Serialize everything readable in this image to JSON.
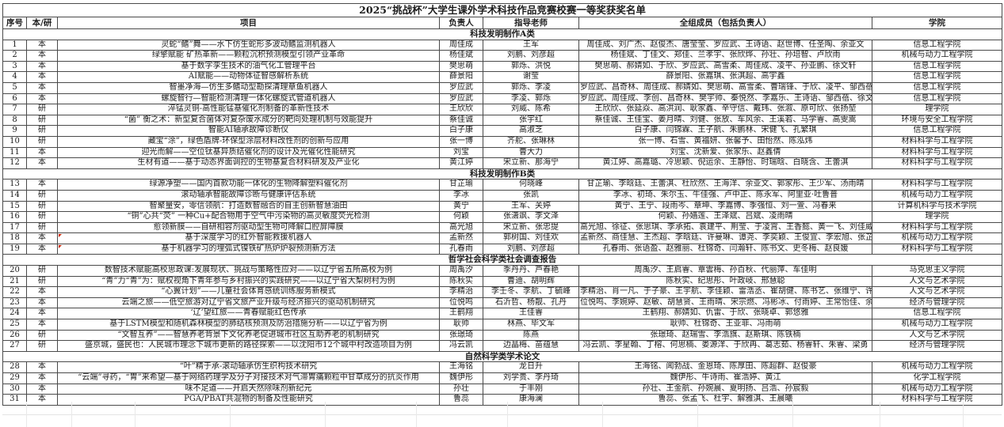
{
  "title": "2025“挑战杯”大学生课外学术科技作品竞赛校赛一等奖获奖名单",
  "columns": [
    "序号",
    "本/研",
    "项目",
    "负责人",
    "指导老师",
    "全组成员（包括负责人）",
    "学院"
  ],
  "sections": [
    {
      "label": "科技发明制作A类",
      "rows": [
        {
          "no": "1",
          "type": "本",
          "project": "灵蛇“鳍”舞——水下仿生蛇形多波动鳍监测机器人",
          "leader": "周佳成",
          "advisors": "王军",
          "members": "周佳成、刘广杰、赵俊杰、唐莹莹、罗应武、王诗语、赵世博、任圣陶、余亚文",
          "college": "信息工程学院"
        },
        {
          "no": "2",
          "type": "本",
          "project": "绿擎赋能 矿热革新——颗粒沉积预测模型引领产业革命",
          "leader": "杨佳斌",
          "advisors": "刘鹏、刘彦超",
          "members": "杨佳斌、丁佳文、郑佳、兰孝宇、张欣烨、孙壮、孙培智、卢欣雨",
          "college": "机械与动力工程学院"
        },
        {
          "no": "3",
          "type": "本",
          "project": "基于数字孪生技术的油气化工管理平台",
          "leader": "樊思萌",
          "advisors": "郭烁、洪悦",
          "members": "樊思萌、郝婧如、于欣、罗应武、高雪柔、周佳成、凌平、孙亚鹏、徐文轩",
          "college": "信息工程学院"
        },
        {
          "no": "4",
          "type": "本",
          "project": "AI赋能——动物体征智感解析系统",
          "leader": "薛景阳",
          "advisors": "谢莹",
          "members": "薛景阳、张嘉琪、张淇超、高宇鑫",
          "college": "信息工程学院"
        },
        {
          "no": "5",
          "type": "本",
          "project": "智墨净海—仿生多鳍动型勘探清理章鱼机器人",
          "leader": "罗应武",
          "advisors": "郭烁、李凌",
          "members": "罗应武、昌奇林、周佳成、郝婧如、樊思萌、高雪柔、曹瑞锋、于欣、凌平、邹西蓓",
          "college": "信息工程学院"
        },
        {
          "no": "6",
          "type": "本",
          "project": "螺旋智行—智能检测清理一体化螺旋式管道机器人",
          "leader": "罗应武",
          "advisors": "李凌、郭烁",
          "members": "罗应武、周佳成、李创、昌奇林、樊宇帅、秦悦然、李嘉乐、王诗语、邹西蓓、徐文轩",
          "college": "信息工程学院"
        },
        {
          "no": "7",
          "type": "研",
          "project": "淬锰灵铜-高性能锰基催化剂制备的革新性技术",
          "leader": "王欣欣",
          "advisors": "刘威、陈希",
          "members": "王欣欣、张延焱、高洪润、耿家鑫、辛守信、戴玮、张溆、原可欣、张扬堃",
          "college": "理学院"
        },
        {
          "no": "8",
          "type": "研",
          "project": "“菌” 衡之术：新型复合菌体对复杂废水成分的靶向处理机制与效能提升",
          "leader": "蔡佳诚",
          "advisors": "张宇红",
          "members": "蔡佳诚、王佳宝、姜月晴、刘健、张放、车风余、王溪若、马学睿、高雯嵩",
          "college": "环境与安全工程学院"
        },
        {
          "no": "9",
          "type": "研",
          "project": "智能AI轴承故障诊断仪",
          "leader": "白子康",
          "advisors": "高淑芝",
          "members": "白子康、闫锦霖、王子航、朱鹏林、宋健飞、孔繁琪",
          "college": "信息工程学院"
        },
        {
          "no": "10",
          "type": "研",
          "project": "藏宝“涂”，绿色盾牌-环保型涂层材料改性剂的创新与应用",
          "leader": "张一博",
          "advisors": "齐舵、张琳林",
          "members": "张一博、石雪、黄福妍、张馨予、田怡然、陈泓炜",
          "college": "材料科学与工程学院"
        },
        {
          "no": "11",
          "type": "本",
          "project": "迎光而解——空位钛基异质结催化剂的设计及光催化性能研究",
          "leader": "刘宝",
          "advisors": "曹大力",
          "members": "刘宝、沈新爱、张家乐、赵鑫倩",
          "college": "材料科学与工程学院"
        },
        {
          "no": "12",
          "type": "本",
          "project": "生材有道——基于动态界面调控的生物基复合材料研发及产业化",
          "leader": "黄江婷",
          "advisors": "宋立新、那海宁",
          "members": "黄江婷、高嘉璐、冷思颖、倪运余、王静怡、时瑞晗、白晓含、王蕾淇",
          "college": "材料科学与工程学院"
        }
      ]
    },
    {
      "label": "科技发明制作B类",
      "rows": [
        {
          "no": "13",
          "type": "本",
          "project": "绿源净塑——国内首款功能一体化的生物降解塑料催化剂",
          "leader": "甘芷瑜",
          "advisors": "何晓峰",
          "members": "甘芷瑜、李晗廷、王蕾淇、杜欣然、王海洋、余亚文、郭家彤、王少军、汤雨晴",
          "college": "材料科学与工程学院"
        },
        {
          "no": "14",
          "type": "研",
          "project": "滚动轴承智能故障诊断与健康评估系统",
          "leader": "李冰",
          "advisors": "张凯",
          "members": "李冰、初琦、朱尔玉、牛佳强、卢中正、陈永军、阿里亚·吐鲁普",
          "college": "机械与动力工程学院"
        },
        {
          "no": "15",
          "type": "研",
          "project": "智聚量安，零信领航：打造数智融合的自主创新智慧油田",
          "leader": "黄宁",
          "advisors": "王军、关婷",
          "members": "黄宁、王宁、段雨岑、章坤、李嘉博、季强恒、刘一萱、冯春来",
          "college": "计算机科学与技术学院"
        },
        {
          "no": "16",
          "type": "研",
          "project": "“铜”心共“荧” 一种Cu+配合物用于空气中污染物的高灵敏度荧光检测",
          "leader": "何颖",
          "advisors": "张潇飒、李文泽",
          "members": "何颖、孙嫱莲、王泽斌、吕斌、凌雨晴",
          "college": "理学院"
        },
        {
          "no": "17",
          "type": "研",
          "project": "愈领新膜——自研相容剂驱动型生物可降解口腔屏障膜",
          "leader": "高光旭",
          "advisors": "宋立新、张忠提",
          "members": "高光旭、徐征、张思琪、李承拓、袁建平、荆莹、于凌霄、王香懿、黄一飞、刘佳威",
          "college": "材料科学与工程学院"
        },
        {
          "no": "18",
          "type": "本",
          "project": "基于深度学习的红外智能救援机器人",
          "leader": "孟新然",
          "advisors": "郭树国、刘佳欢",
          "members": "孟新然、商佳慧、王杰超、李晗廷、许曼琳、谭尧、李奕颖、王俊宜、李宏旭、张芷铭",
          "college": "机械与动力工程学院",
          "flag": true
        },
        {
          "no": "19",
          "type": "本",
          "project": "基于机器学习的埋弧式镍铁矿热炉炉裂预测新方法",
          "leader": "孔春雨",
          "advisors": "刘鹏、刘彦超",
          "members": "孔春雨、张语盈、赵雅丽、杜锦奇、闫瀚轩、陈书文、史冬梅、赵良媛",
          "college": "材料科学与工程学院",
          "flag": true
        }
      ]
    },
    {
      "label": "哲学社会科学类社会调查报告",
      "rows": [
        {
          "no": "20",
          "type": "研",
          "project": "数智技术赋能高校思政课:发展现状、挑战与策略性应对——以辽宁省五所高校为例",
          "leader": "周禹汐",
          "advisors": "季丹丹、芦春艳",
          "members": "周禹汐、王启睿、覃雲梅、孙百秋、代丽萍、车佳明",
          "college": "马克思主义学院"
        },
        {
          "no": "21",
          "type": "研",
          "project": "“青”力“青”为：赋权视角下青年参与乡村振兴的实践研究——以辽宁省大梨树村为例",
          "leader": "陈秋实",
          "advisors": "曹迪、胡明辉",
          "members": "陈秋实、纪思彤、叶政岐、邢慧聪",
          "college": "人文与艺术学院"
        },
        {
          "no": "22",
          "type": "本",
          "project": "“心翼计划”——儿童社会体育感统训练服务新模式",
          "leader": "李精治",
          "advisors": "李壬冬、李航、丁毓峰",
          "members": "李精治、肖一凡、于子豪、王宇航、李佳颖、雷浩丞、崔胡健、陈书艺、张维宁、许曼琳",
          "college": "人文与艺术学院"
        },
        {
          "no": "23",
          "type": "本",
          "project": "云端之旅——低空旅游对辽宁省文旅产业升级与经济振兴的驱动机制研究",
          "leader": "位悦鸣",
          "advisors": "石沂哲、杨靓、孔丹",
          "members": "位悦鸣、李婉婷、赵敏、胡慧贤、王雨晴、宋宗燃、冯彬冰、付雨婷、王常怡佳、余亚文",
          "college": "经济与管理学院"
        },
        {
          "no": "24",
          "type": "本",
          "project": "‘辽’望红旅——青春赋能红色传承",
          "leader": "王鹤翔",
          "advisors": "王佳睿",
          "members": "王鹤翔、郝婧如、仇雷、于欣、张晓卓、郭悠雅",
          "college": "信息工程学院"
        },
        {
          "no": "25",
          "type": "本",
          "project": "基于LSTM模型和随机森林模型的肺结核预测及防治措施分析——以辽宁省为例",
          "leader": "耿帅",
          "advisors": "林燕、毕文军",
          "members": "耿帅、杜锦奇、王亚菲、冯雨萌",
          "college": "机械与动力工程学院"
        },
        {
          "no": "26",
          "type": "研",
          "project": "“文智互养”——智慧养老背景下文化养老促进城市社区互助养老的机制研究",
          "leader": "张璟琦",
          "advisors": "陈燕",
          "members": "张璟琦、赵瑞雪、李浩旗、赵斯琪、陈铁楠",
          "college": "人文与艺术学院"
        },
        {
          "no": "27",
          "type": "研",
          "project": "盛京城，盛民也：人民城市理念下城市更新的路径探索——以沈阳市12个城中村改造项目为例",
          "leader": "冯云凯",
          "advisors": "边晶梅、苗蕴慧",
          "members": "冯云凯、李星翰、丁榕、何思楠、娄源洋、于欣冉、葛志茹、杨睿轩、朱睿、梁勇",
          "college": "经济与管理学院"
        }
      ]
    },
    {
      "label": "自然科学类学术论文",
      "rows": [
        {
          "no": "28",
          "type": "本",
          "project": "“叶”精于承-滚动轴承仿生织构技术研究",
          "leader": "王海铭",
          "advisors": "龙日升",
          "members": "王海铭、闻勃战、金恩琦、陈厚田、陈超群、赵俊豪",
          "college": "机械与动力工程学院"
        },
        {
          "no": "29",
          "type": "本",
          "project": "“云端”寻药，“胃”来希望—基于网络药理学及分子对接技术对气滞胃痛颗粒中甘草成分的抗炎作用",
          "leader": "魏伊彤",
          "advisors": "刘学贵、李丹琦",
          "members": "魏伊彤、牛诗雨、崔浩婷、黄江",
          "college": "化学工程学院"
        },
        {
          "no": "30",
          "type": "本",
          "project": "味不足道——开启天然除味剂新纪元",
          "leader": "孙壮",
          "advisors": "于丰刚",
          "members": "孙壮、王金航、孙婉晨、夏明扬、吕浩、孙宸毅",
          "college": "机械与动力工程学院"
        },
        {
          "no": "31",
          "type": "本",
          "project": "PGA/PBAT共混物的制备及性能研究",
          "leader": "鲁蕊",
          "advisors": "康海澜",
          "members": "鲁蕊、张孟飞、杜宇、解雅淇、王晨曦",
          "college": "材料科学与工程学院"
        }
      ]
    }
  ]
}
